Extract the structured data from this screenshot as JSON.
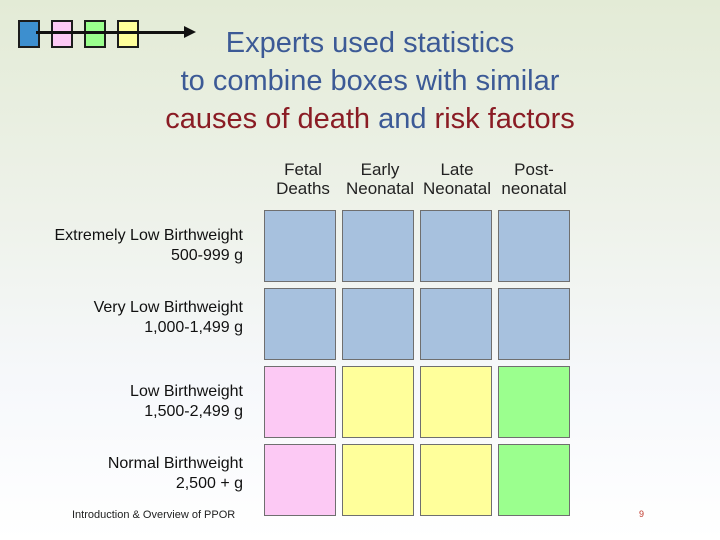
{
  "colors": {
    "blue": "#a7c1de",
    "pink": "#fcc9f4",
    "green": "#9bff8e",
    "yellow": "#ffff9b",
    "title_blue": "#3c5a96",
    "title_red": "#8a1c24"
  },
  "legend": {
    "squares": [
      "#3d8fcf",
      "#fcc9f4",
      "#9bff8e",
      "#ffff9b"
    ],
    "arrow": "right-arrow-icon"
  },
  "title": {
    "line1": "Experts used statistics",
    "line2": "to combine boxes with similar",
    "line3_part1": "causes of death",
    "line3_part2": "and",
    "line3_part3": "risk factors"
  },
  "columns": [
    "Fetal\nDeaths",
    "Early\nNeonatal",
    "Late\nNeonatal",
    "Post-\nneonatal"
  ],
  "rows": [
    {
      "label": "Extremely Low Birthweight\n500-999 g",
      "cells": [
        "blue",
        "blue",
        "blue",
        "blue"
      ]
    },
    {
      "label": "Very Low Birthweight\n1,000-1,499 g",
      "cells": [
        "blue",
        "blue",
        "blue",
        "blue"
      ]
    },
    {
      "label": "Low Birthweight\n1,500-2,499 g",
      "cells": [
        "pink",
        "yellow",
        "yellow",
        "green"
      ]
    },
    {
      "label": "Normal Birthweight\n2,500 + g",
      "cells": [
        "pink",
        "yellow",
        "yellow",
        "green"
      ]
    }
  ],
  "footer": "Introduction & Overview of PPOR",
  "page_number": "9"
}
